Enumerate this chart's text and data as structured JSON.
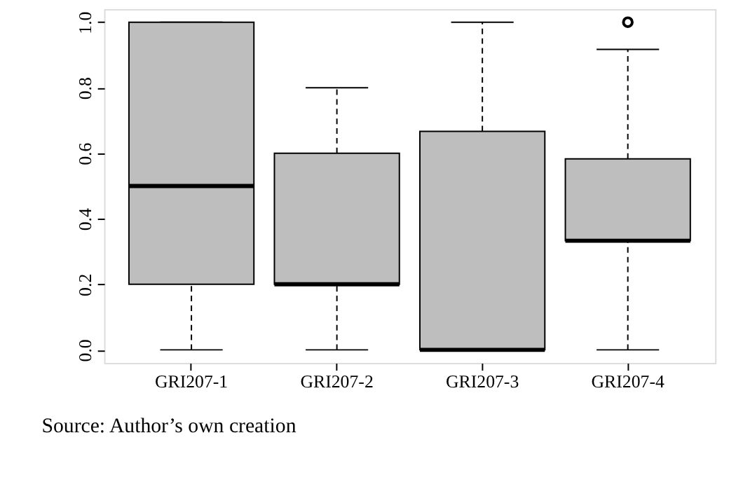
{
  "chart_data": {
    "type": "box",
    "categories": [
      "GRI207-1",
      "GRI207-2",
      "GRI207-3",
      "GRI207-4"
    ],
    "color": "#bebebe",
    "boxes": [
      {
        "low": 0,
        "q1": 0.2,
        "median": 0.5,
        "q3": 1.0,
        "high": 1.0
      },
      {
        "low": 0,
        "q1": 0.2,
        "median": 0.2,
        "q3": 0.6,
        "high": 0.8
      },
      {
        "low": 0,
        "q1": 0,
        "median": 0,
        "q3": 0.667,
        "high": 1.0
      },
      {
        "low": 0,
        "q1": 0.333,
        "median": 0.333,
        "q3": 0.583,
        "high": 0.917,
        "outliers": [
          1.0
        ]
      }
    ],
    "ylim": [
      -0.04,
      1.04
    ],
    "yticks": [
      {
        "value": 0,
        "label": "0.0"
      },
      {
        "value": 0.2,
        "label": "0.2"
      },
      {
        "value": 0.4,
        "label": "0.4"
      },
      {
        "value": 0.6,
        "label": "0.6"
      },
      {
        "value": 0.8,
        "label": "0.8"
      },
      {
        "value": 1.0,
        "label": "1.0"
      }
    ],
    "grid": false,
    "annotations": [
      "Source: Author’s own creation"
    ]
  }
}
